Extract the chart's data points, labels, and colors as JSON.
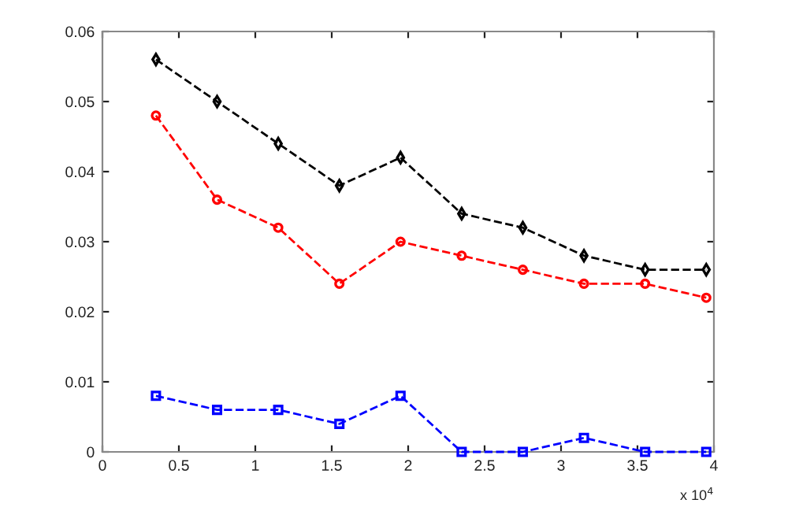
{
  "chart_data": {
    "type": "line",
    "line_style": "dashed",
    "x": [
      0.35,
      0.75,
      1.15,
      1.55,
      1.95,
      2.35,
      2.75,
      3.15,
      3.55,
      3.95
    ],
    "series": [
      {
        "color": "#000000",
        "marker": "diamond",
        "values": [
          0.056,
          0.05,
          0.044,
          0.038,
          0.042,
          0.034,
          0.032,
          0.028,
          0.026,
          0.026
        ]
      },
      {
        "color": "#ff0000",
        "marker": "circle",
        "values": [
          0.048,
          0.036,
          0.032,
          0.024,
          0.03,
          0.028,
          0.026,
          0.024,
          0.024,
          0.022
        ]
      },
      {
        "color": "#0000ff",
        "marker": "square",
        "values": [
          0.008,
          0.006,
          0.006,
          0.004,
          0.008,
          0,
          0,
          0.002,
          0,
          0
        ]
      }
    ],
    "xlim": [
      0,
      4
    ],
    "xticks": [
      0,
      0.5,
      1,
      1.5,
      2,
      2.5,
      3,
      3.5,
      4
    ],
    "ylim": [
      0,
      0.06
    ],
    "yticks": [
      0,
      0.01,
      0.02,
      0.03,
      0.04,
      0.05,
      0.06
    ],
    "annotations": [
      "x 10$^{4}$"
    ],
    "grid": false,
    "legend": false
  }
}
